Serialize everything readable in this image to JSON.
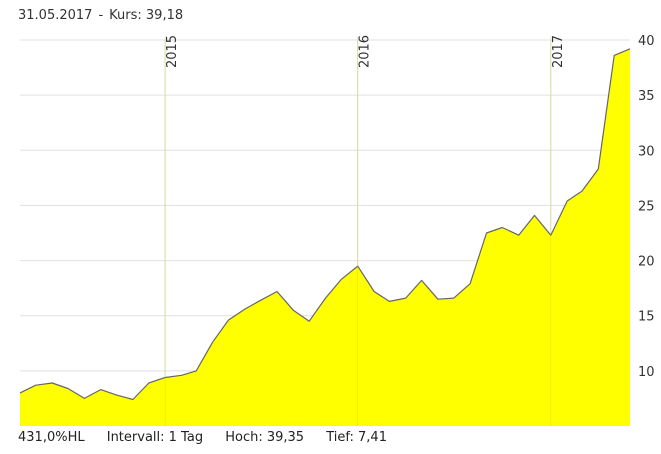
{
  "header": {
    "date": "31.05.2017",
    "separator": "-",
    "price_label": "Kurs:",
    "price_value": "39,18"
  },
  "footer": {
    "performance": "431,0%HL",
    "interval_label": "Intervall:",
    "interval_value": "1 Tag",
    "high_label": "Hoch:",
    "high_value": "39,35",
    "low_label": "Tief:",
    "low_value": "7,41"
  },
  "colors": {
    "fill": "#ffff00",
    "line": "#666666",
    "grid": "#e0e0e0"
  },
  "chart_data": {
    "type": "area",
    "title": "",
    "xlabel": "",
    "ylabel": "",
    "ylim": [
      5,
      40
    ],
    "xlim": [
      "2014-04-01",
      "2017-05-31"
    ],
    "yticks": [
      10,
      15,
      20,
      25,
      30,
      35,
      40
    ],
    "xticks": [
      {
        "label": "2015",
        "date": "2015-01-01"
      },
      {
        "label": "2016",
        "date": "2016-01-01"
      },
      {
        "label": "2017",
        "date": "2017-01-01"
      }
    ],
    "grid": true,
    "x": [
      "2014-04-01",
      "2014-05-01",
      "2014-06-01",
      "2014-07-01",
      "2014-08-01",
      "2014-09-01",
      "2014-10-01",
      "2014-11-01",
      "2014-12-01",
      "2015-01-01",
      "2015-02-01",
      "2015-03-01",
      "2015-04-01",
      "2015-05-01",
      "2015-06-01",
      "2015-07-01",
      "2015-08-01",
      "2015-09-01",
      "2015-10-01",
      "2015-11-01",
      "2015-12-01",
      "2016-01-01",
      "2016-02-01",
      "2016-03-01",
      "2016-04-01",
      "2016-05-01",
      "2016-06-01",
      "2016-07-01",
      "2016-08-01",
      "2016-09-01",
      "2016-10-01",
      "2016-11-01",
      "2016-12-01",
      "2017-01-01",
      "2017-02-01",
      "2017-03-01",
      "2017-04-01",
      "2017-05-01",
      "2017-05-31"
    ],
    "values": [
      8.0,
      8.7,
      8.9,
      8.4,
      7.5,
      8.3,
      7.8,
      7.4,
      8.9,
      9.4,
      9.6,
      10.0,
      12.6,
      14.6,
      15.6,
      16.4,
      17.2,
      15.5,
      14.5,
      16.6,
      18.3,
      19.5,
      17.2,
      16.3,
      16.6,
      18.2,
      16.5,
      16.6,
      17.9,
      22.5,
      23.0,
      22.3,
      24.1,
      22.3,
      25.4,
      26.3,
      28.3,
      38.6,
      39.2
    ]
  }
}
